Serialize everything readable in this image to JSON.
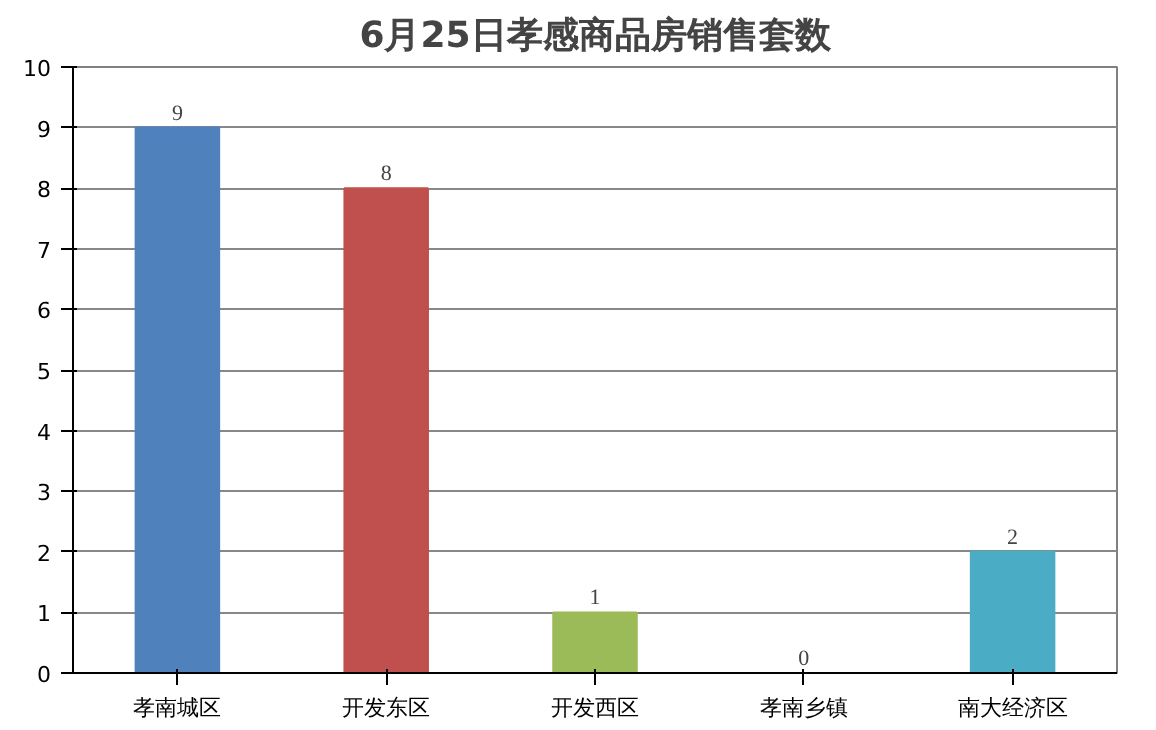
{
  "chart_data": {
    "type": "bar",
    "title": "6月25日孝感商品房销售套数",
    "categories": [
      "孝南城区",
      "开发东区",
      "开发西区",
      "孝南乡镇",
      "南大经济区"
    ],
    "values": [
      9,
      8,
      1,
      0,
      2
    ],
    "colors": [
      "#4f81bd",
      "#c0504d",
      "#9bbb59",
      "#8064a2",
      "#4bacc6"
    ],
    "ylim": [
      0,
      10
    ],
    "yticks": [
      0,
      1,
      2,
      3,
      4,
      5,
      6,
      7,
      8,
      9,
      10
    ],
    "grid": "y",
    "data_labels": true
  }
}
